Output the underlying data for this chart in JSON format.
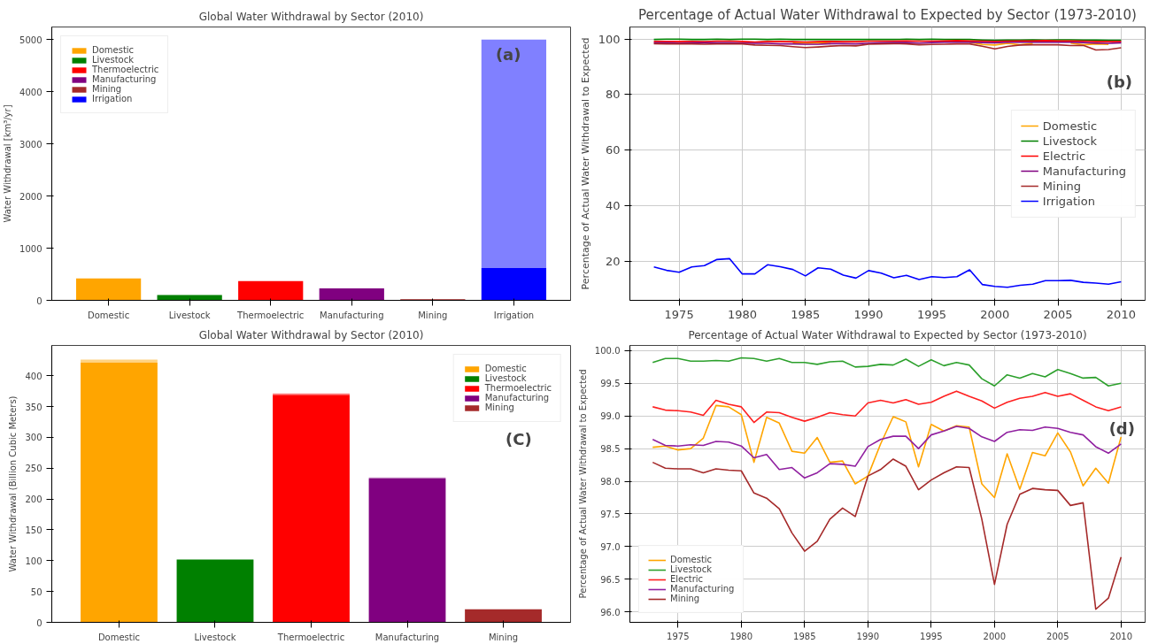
{
  "chart_data": [
    {
      "type": "bar",
      "title": "Global Water Withdrawal by Sector (2010)",
      "ylabel": "Water Withdrawal [km³/yr]",
      "stacked": true,
      "legend": "top left",
      "grid": false,
      "categories": [
        "Domestic",
        "Livestock",
        "Thermoelectric",
        "Manufacturing",
        "Mining",
        "Irrigation"
      ],
      "series": [
        {
          "name": "Domestic",
          "color": "#ffa500",
          "values": [
            420,
            null,
            null,
            null,
            null,
            null
          ]
        },
        {
          "name": "Livestock",
          "color": "#008000",
          "values": [
            null,
            100,
            null,
            null,
            null,
            null
          ]
        },
        {
          "name": "Thermoelectric",
          "color": "#ff0000",
          "values": [
            null,
            null,
            370,
            null,
            null,
            null
          ]
        },
        {
          "name": "Manufacturing",
          "color": "#800080",
          "values": [
            null,
            null,
            null,
            230,
            null,
            null
          ]
        },
        {
          "name": "Mining",
          "color": "#a52a2a",
          "values": [
            null,
            null,
            null,
            null,
            20,
            null
          ]
        },
        {
          "name": "Irrigation",
          "color": "#0000ff",
          "values": [
            null,
            null,
            null,
            null,
            null,
            620
          ]
        },
        {
          "color": "#8080ff",
          "values": [
            null,
            null,
            null,
            null,
            null,
            4380
          ]
        }
      ],
      "ylim": [
        0,
        5240
      ],
      "yticks": [
        0,
        1000,
        2000,
        3000,
        4000,
        5000
      ],
      "annotations": [
        "(a)"
      ]
    },
    {
      "type": "line",
      "title": "Percentage of Actual Water Withdrawal to Expected by Sector (1973-2010)",
      "ylabel": "Percentage of Actual Water Withdrawal to Expected",
      "legend": "right",
      "grid": true,
      "x": [
        1973,
        1974,
        1975,
        1976,
        1977,
        1978,
        1979,
        1980,
        1981,
        1982,
        1983,
        1984,
        1985,
        1986,
        1987,
        1988,
        1989,
        1990,
        1991,
        1992,
        1993,
        1994,
        1995,
        1996,
        1997,
        1998,
        1999,
        2000,
        2001,
        2002,
        2003,
        2004,
        2005,
        2006,
        2007,
        2008,
        2009,
        2010
      ],
      "series": [
        {
          "name": "Domestic",
          "color": "#ffa500",
          "values": [
            null,
            null,
            null,
            null,
            null,
            null,
            null,
            null,
            null,
            null,
            null,
            98.5,
            98.4,
            98.7,
            98.3,
            null,
            null,
            null,
            null,
            null,
            null,
            null,
            null,
            null,
            null,
            98.8,
            98.0,
            97.8,
            98.4,
            97.9,
            98.4,
            null,
            null,
            98.5,
            97.9,
            98.2,
            98.0,
            null
          ]
        },
        {
          "name": "Livestock",
          "color": "#008000",
          "values": [
            99.8,
            99.9,
            99.9,
            99.8,
            99.8,
            99.9,
            99.8,
            99.9,
            99.9,
            99.8,
            99.9,
            99.8,
            99.8,
            99.8,
            99.8,
            99.8,
            99.8,
            99.8,
            99.8,
            99.8,
            99.9,
            99.8,
            99.9,
            99.8,
            99.8,
            99.8,
            99.6,
            99.5,
            99.6,
            99.6,
            99.7,
            99.6,
            99.7,
            99.7,
            99.6,
            99.6,
            99.5,
            99.5
          ]
        },
        {
          "name": "Electric",
          "color": "#ff0000",
          "values": [
            99.1,
            99.1,
            99.1,
            99.1,
            99.0,
            99.2,
            99.2,
            99.1,
            98.9,
            99.1,
            99.1,
            99.0,
            98.9,
            99.0,
            99.1,
            99.0,
            99.0,
            99.2,
            99.2,
            99.2,
            99.3,
            99.2,
            99.2,
            99.3,
            99.4,
            99.3,
            99.2,
            99.1,
            99.2,
            99.3,
            99.3,
            99.4,
            99.3,
            99.3,
            99.2,
            99.1,
            99.1,
            99.1
          ]
        },
        {
          "name": "Manufacturing",
          "color": "#800080",
          "values": [
            98.6,
            98.6,
            98.5,
            98.6,
            98.6,
            98.6,
            98.6,
            98.5,
            98.4,
            98.4,
            98.2,
            98.2,
            98.1,
            98.1,
            98.3,
            98.3,
            98.2,
            98.5,
            98.6,
            98.7,
            98.7,
            98.5,
            98.7,
            98.8,
            98.8,
            98.8,
            98.7,
            98.6,
            98.8,
            98.8,
            98.8,
            98.8,
            98.8,
            98.8,
            98.7,
            98.5,
            98.4,
            98.6
          ]
        },
        {
          "name": "Mining",
          "color": "#a52a2a",
          "values": [
            98.3,
            98.2,
            98.2,
            98.2,
            98.1,
            98.2,
            98.2,
            98.2,
            97.8,
            97.7,
            97.6,
            97.2,
            96.9,
            97.1,
            97.4,
            97.6,
            97.5,
            98.1,
            98.2,
            98.3,
            98.2,
            97.9,
            98.0,
            98.1,
            98.2,
            98.2,
            97.4,
            96.4,
            97.3,
            97.8,
            97.9,
            97.9,
            97.9,
            97.6,
            97.7,
            96.0,
            96.2,
            96.8
          ]
        },
        {
          "name": "Irrigation",
          "color": "#0000ff",
          "values": [
            17.9,
            16.7,
            16.0,
            17.9,
            18.4,
            20.6,
            20.9,
            15.4,
            15.4,
            18.7,
            18.0,
            17.0,
            14.7,
            17.6,
            17.1,
            15.0,
            13.9,
            16.6,
            15.7,
            14.0,
            14.9,
            13.4,
            14.4,
            14.1,
            14.4,
            16.9,
            11.6,
            10.9,
            10.6,
            11.3,
            11.7,
            13.0,
            13.0,
            13.1,
            12.4,
            12.1,
            11.7,
            12.6
          ]
        }
      ],
      "xlim": [
        1971.1,
        2011.9
      ],
      "xticks": [
        1975,
        1980,
        1985,
        1990,
        1995,
        2000,
        2005,
        2010
      ],
      "ylim": [
        5.9,
        104.3
      ],
      "yticks": [
        20,
        40,
        60,
        80,
        100
      ],
      "annotations": [
        "(b)"
      ]
    },
    {
      "type": "bar",
      "title": "Global Water Withdrawal by Sector (2010)",
      "ylabel": "Water Withdrawal (Billion Cubic Meters)",
      "stacked": true,
      "legend": "top right",
      "grid": false,
      "categories": [
        "Domestic",
        "Livestock",
        "Thermoelectric",
        "Manufacturing",
        "Mining"
      ],
      "series": [
        {
          "name": "Domestic",
          "color": "#ffa500",
          "values": [
            421,
            null,
            null,
            null,
            null
          ]
        },
        {
          "name": "Livestock",
          "color": "#008000",
          "values": [
            null,
            102,
            null,
            null,
            null
          ]
        },
        {
          "name": "Thermoelectric",
          "color": "#ff0000",
          "values": [
            null,
            null,
            369,
            null,
            null
          ]
        },
        {
          "name": "Manufacturing",
          "color": "#800080",
          "values": [
            null,
            null,
            null,
            233,
            null
          ]
        },
        {
          "name": "Mining",
          "color": "#a52a2a",
          "values": [
            null,
            null,
            null,
            null,
            21
          ]
        },
        {
          "colors": [
            "#ffd280",
            null,
            "#ff8080",
            "#bf80bf",
            null
          ],
          "values": [
            5,
            null,
            2,
            2,
            null
          ]
        }
      ],
      "ylim": [
        0,
        449
      ],
      "yticks": [
        0,
        50,
        100,
        150,
        200,
        250,
        300,
        350,
        400
      ],
      "annotations": [
        "(C)"
      ]
    },
    {
      "type": "line",
      "title": "Percentage of Actual Water Withdrawal to Expected by Sector (1973-2010)",
      "ylabel": "Percentage of Actual Water Withdrawal to Expected",
      "legend": "bottom left",
      "grid": true,
      "x": [
        1973,
        1974,
        1975,
        1976,
        1977,
        1978,
        1979,
        1980,
        1981,
        1982,
        1983,
        1984,
        1985,
        1986,
        1987,
        1988,
        1989,
        1990,
        1991,
        1992,
        1993,
        1994,
        1995,
        1996,
        1997,
        1998,
        1999,
        2000,
        2001,
        2002,
        2003,
        2004,
        2005,
        2006,
        2007,
        2008,
        2009,
        2010
      ],
      "series": [
        {
          "name": "Domestic",
          "color": "#ffa500",
          "values": [
            98.52,
            98.54,
            98.48,
            98.5,
            98.66,
            99.16,
            99.14,
            99.02,
            98.29,
            98.98,
            98.89,
            98.46,
            98.43,
            98.67,
            98.29,
            98.31,
            97.96,
            98.08,
            98.57,
            98.99,
            98.91,
            98.22,
            98.87,
            98.77,
            98.85,
            98.83,
            97.96,
            97.75,
            98.42,
            97.88,
            98.44,
            98.39,
            98.74,
            98.45,
            97.93,
            98.2,
            97.97,
            98.68
          ]
        },
        {
          "name": "Livestock",
          "color": "#2ca02c",
          "values": [
            99.82,
            99.88,
            99.88,
            99.84,
            99.84,
            99.85,
            99.84,
            99.89,
            99.88,
            99.84,
            99.88,
            99.82,
            99.82,
            99.79,
            99.83,
            99.84,
            99.75,
            99.76,
            99.79,
            99.78,
            99.87,
            99.76,
            99.86,
            99.77,
            99.82,
            99.78,
            99.57,
            99.46,
            99.63,
            99.58,
            99.65,
            99.6,
            99.71,
            99.65,
            99.58,
            99.59,
            99.46,
            99.5
          ]
        },
        {
          "name": "Electric",
          "color": "#ff2020",
          "values": [
            99.14,
            99.09,
            99.08,
            99.06,
            99.01,
            99.24,
            99.18,
            99.14,
            98.9,
            99.06,
            99.05,
            98.98,
            98.92,
            98.98,
            99.05,
            99.02,
            99.0,
            99.2,
            99.24,
            99.2,
            99.25,
            99.18,
            99.21,
            99.3,
            99.38,
            99.3,
            99.23,
            99.12,
            99.21,
            99.27,
            99.3,
            99.36,
            99.3,
            99.34,
            99.24,
            99.14,
            99.08,
            99.14
          ]
        },
        {
          "name": "Manufacturing",
          "color": "#9020a0",
          "values": [
            98.64,
            98.55,
            98.54,
            98.56,
            98.55,
            98.61,
            98.6,
            98.54,
            98.36,
            98.41,
            98.18,
            98.21,
            98.05,
            98.13,
            98.27,
            98.26,
            98.23,
            98.53,
            98.64,
            98.69,
            98.69,
            98.5,
            98.71,
            98.77,
            98.84,
            98.81,
            98.68,
            98.61,
            98.75,
            98.79,
            98.78,
            98.83,
            98.81,
            98.75,
            98.71,
            98.53,
            98.43,
            98.57
          ]
        },
        {
          "name": "Mining",
          "color": "#a52a2a",
          "values": [
            98.29,
            98.2,
            98.19,
            98.19,
            98.13,
            98.19,
            98.17,
            98.16,
            97.82,
            97.74,
            97.58,
            97.21,
            96.93,
            97.08,
            97.42,
            97.59,
            97.46,
            98.08,
            98.18,
            98.34,
            98.23,
            97.87,
            98.02,
            98.13,
            98.22,
            98.21,
            97.42,
            96.42,
            97.34,
            97.8,
            97.89,
            97.87,
            97.86,
            97.63,
            97.67,
            96.04,
            96.21,
            96.84
          ]
        }
      ],
      "xlim": [
        1971.2,
        2011.9
      ],
      "xticks": [
        1975,
        1980,
        1985,
        1990,
        1995,
        2000,
        2005,
        2010
      ],
      "ylim": [
        95.84,
        100.08
      ],
      "yticks": [
        {
          "value": 96,
          "label": "96.0"
        },
        96.5,
        {
          "value": 97,
          "label": "97.0"
        },
        97.5,
        {
          "value": 98,
          "label": "98.0"
        },
        98.5,
        {
          "value": 99,
          "label": "99.0"
        },
        99.5,
        {
          "value": 100,
          "label": "100.0"
        }
      ],
      "annotations": [
        "(d)"
      ]
    }
  ]
}
